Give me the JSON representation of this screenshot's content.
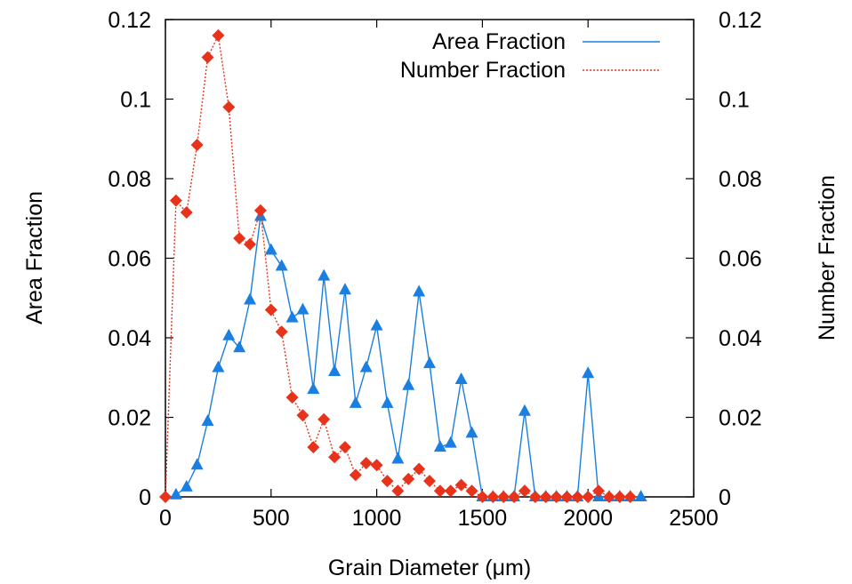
{
  "chart_data": {
    "type": "line",
    "xlabel": "Grain Diameter (μm)",
    "ylabel": "Area Fraction",
    "y2label": "Number Fraction",
    "xlim": [
      0,
      2500
    ],
    "ylim": [
      0,
      0.12
    ],
    "y2lim": [
      0,
      0.12
    ],
    "x_ticks": [
      "0",
      "500",
      "1000",
      "1500",
      "2000",
      "2500"
    ],
    "y_ticks": [
      "0",
      "0.02",
      "0.04",
      "0.06",
      "0.08",
      "0.1",
      "0.12"
    ],
    "y2_ticks": [
      "0",
      "0.02",
      "0.04",
      "0.06",
      "0.08",
      "0.1",
      "0.12"
    ],
    "legend_position": "top-right",
    "grid": false,
    "series": [
      {
        "name": "Area Fraction",
        "axis": "left",
        "color": "#1a7fe0",
        "line_style": "solid",
        "marker": "triangle",
        "x": [
          50,
          100,
          150,
          200,
          250,
          300,
          350,
          400,
          450,
          500,
          550,
          600,
          650,
          700,
          750,
          800,
          850,
          900,
          950,
          1000,
          1050,
          1100,
          1150,
          1200,
          1250,
          1300,
          1350,
          1400,
          1450,
          1500,
          1550,
          1600,
          1650,
          1700,
          1750,
          1800,
          1850,
          1900,
          1950,
          2000,
          2050,
          2100,
          2150,
          2200,
          2250
        ],
        "y": [
          0.0005,
          0.0025,
          0.008,
          0.019,
          0.0325,
          0.0405,
          0.0375,
          0.0495,
          0.0705,
          0.062,
          0.058,
          0.045,
          0.047,
          0.027,
          0.0555,
          0.0315,
          0.052,
          0.0235,
          0.0325,
          0.043,
          0.0235,
          0.0095,
          0.028,
          0.0515,
          0.0335,
          0.0125,
          0.0135,
          0.0295,
          0.016,
          0,
          0,
          0,
          0,
          0.0215,
          0,
          0,
          0,
          0,
          0,
          0.031,
          0,
          0,
          0,
          0,
          0
        ]
      },
      {
        "name": "Number Fraction",
        "axis": "right",
        "color": "#e8331c",
        "line_style": "dotted",
        "marker": "diamond",
        "x": [
          0,
          50,
          100,
          150,
          200,
          250,
          300,
          350,
          400,
          450,
          500,
          550,
          600,
          650,
          700,
          750,
          800,
          850,
          900,
          950,
          1000,
          1050,
          1100,
          1150,
          1200,
          1250,
          1300,
          1350,
          1400,
          1450,
          1500,
          1550,
          1600,
          1650,
          1700,
          1750,
          1800,
          1850,
          1900,
          1950,
          2000,
          2050,
          2100,
          2150,
          2200
        ],
        "y": [
          0,
          0.0745,
          0.0715,
          0.0885,
          0.1105,
          0.116,
          0.098,
          0.065,
          0.0635,
          0.072,
          0.047,
          0.0415,
          0.025,
          0.0205,
          0.0125,
          0.0195,
          0.01,
          0.0125,
          0.0055,
          0.0085,
          0.008,
          0.004,
          0.0015,
          0.0045,
          0.007,
          0.004,
          0.0015,
          0.0015,
          0.003,
          0.0015,
          0,
          0,
          0,
          0,
          0.0015,
          0,
          0,
          0,
          0,
          0,
          0,
          0.0015,
          0,
          0,
          0
        ]
      }
    ]
  }
}
